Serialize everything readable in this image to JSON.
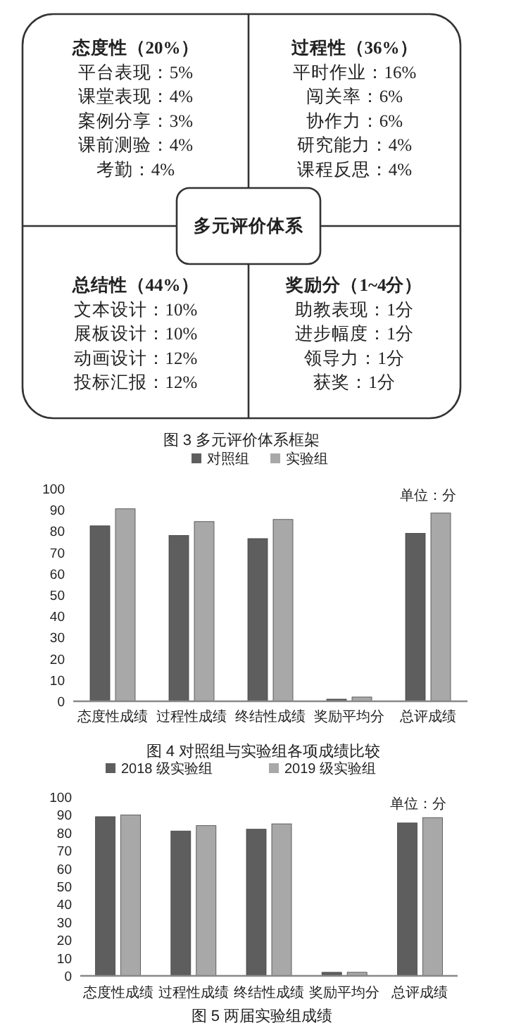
{
  "chart_data": [
    {
      "type": "other",
      "title": "图 3  多元评价体系框架",
      "annotations": [
        "态度性（20%）",
        "平台表现：5%",
        "课堂表现：4%",
        "案例分享：3%",
        "课前测验：4%",
        "考勤：4%",
        "过程性（36%）",
        "平时作业：16%",
        "闯关率：6%",
        "协作力：6%",
        "研究能力：4%",
        "课程反思：4%",
        "总结性（44%）",
        "文本设计：10%",
        "展板设计：10%",
        "动画设计：12%",
        "投标汇报：12%",
        "奖励分（1~4分）",
        "助教表现：1分",
        "进步幅度：1分",
        "领导力：1分",
        "获奖：1分",
        "多元评价体系"
      ]
    },
    {
      "type": "bar",
      "title": "图 4  对照组与实验组各项成绩比较",
      "categories": [
        "态度性成绩",
        "过程性成绩",
        "终结性成绩",
        "奖励平均分",
        "总评成绩"
      ],
      "series": [
        {
          "name": "对照组",
          "color": "#5e5e5e",
          "values": [
            82.5,
            78,
            76.5,
            1,
            79
          ]
        },
        {
          "name": "实验组",
          "color": "#a8a8a8",
          "values": [
            90.5,
            84.5,
            85.5,
            2,
            88.5
          ]
        }
      ],
      "ylim": [
        0,
        100
      ],
      "yticks": [
        0,
        10,
        20,
        30,
        40,
        50,
        60,
        70,
        80,
        90,
        100
      ],
      "grid": false,
      "legend": "top",
      "annotations": [
        "单位：分"
      ]
    },
    {
      "type": "bar",
      "title": "图 5  两届实验组成绩",
      "categories": [
        "态度性成绩",
        "过程性成绩",
        "终结性成绩",
        "奖励平均分",
        "总评成绩"
      ],
      "series": [
        {
          "name": "2018 级实验组",
          "color": "#5e5e5e",
          "values": [
            89,
            81,
            82,
            2,
            85.5
          ]
        },
        {
          "name": "2019 级实验组",
          "color": "#a8a8a8",
          "values": [
            90,
            84,
            85,
            2,
            88.5
          ]
        }
      ],
      "ylim": [
        0,
        100
      ],
      "yticks": [
        0,
        10,
        20,
        30,
        40,
        50,
        60,
        70,
        80,
        90,
        100
      ],
      "grid": false,
      "legend": "top",
      "annotations": [
        "单位：分"
      ]
    }
  ]
}
